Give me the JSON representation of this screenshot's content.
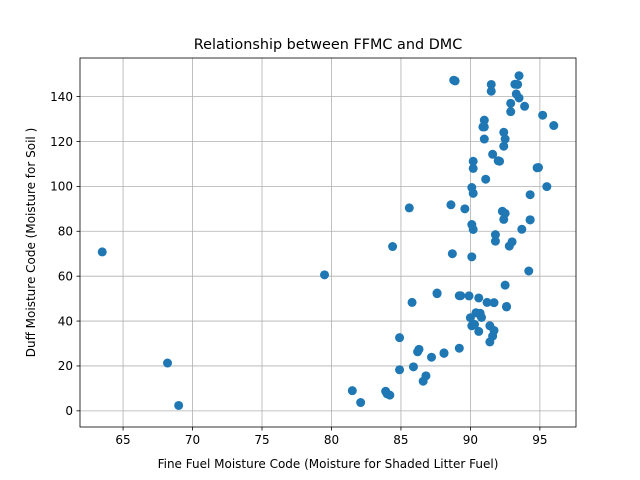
{
  "chart_data": {
    "type": "scatter",
    "title": "Relationship between FFMC and DMC",
    "xlabel": "Fine Fuel Moisture Code (Moisture for Shaded Litter Fuel)",
    "ylabel": "Duff Moisture Code (Moisture for Soil )",
    "xlim": [
      61.9,
      97.6
    ],
    "ylim": [
      -7.2,
      157.2
    ],
    "xticks": [
      65,
      70,
      75,
      80,
      85,
      90,
      95
    ],
    "yticks": [
      0,
      20,
      40,
      60,
      80,
      100,
      120,
      140
    ],
    "grid": true,
    "marker_color": "#1f77b4",
    "series": [
      {
        "points": [
          [
            63.5,
            70.8
          ],
          [
            68.2,
            21.3
          ],
          [
            69.0,
            2.4
          ],
          [
            79.5,
            60.6
          ],
          [
            81.5,
            9.0
          ],
          [
            82.1,
            3.7
          ],
          [
            83.9,
            8.7
          ],
          [
            84.0,
            7.6
          ],
          [
            84.2,
            7.0
          ],
          [
            84.4,
            73.2
          ],
          [
            84.9,
            18.3
          ],
          [
            84.9,
            32.6
          ],
          [
            85.6,
            90.4
          ],
          [
            85.8,
            48.3
          ],
          [
            85.9,
            19.6
          ],
          [
            86.2,
            26.3
          ],
          [
            86.3,
            27.4
          ],
          [
            86.6,
            13.2
          ],
          [
            86.8,
            15.6
          ],
          [
            87.2,
            23.9
          ],
          [
            87.6,
            52.2
          ],
          [
            87.6,
            52.5
          ],
          [
            88.1,
            25.8
          ],
          [
            88.1,
            25.6
          ],
          [
            88.6,
            91.8
          ],
          [
            88.7,
            70.0
          ],
          [
            88.8,
            147.3
          ],
          [
            88.9,
            147.0
          ],
          [
            89.2,
            27.9
          ],
          [
            89.2,
            51.3
          ],
          [
            89.3,
            51.3
          ],
          [
            89.6,
            90.0
          ],
          [
            89.9,
            51.2
          ],
          [
            90.0,
            41.5
          ],
          [
            90.1,
            37.9
          ],
          [
            90.1,
            83.0
          ],
          [
            90.1,
            68.6
          ],
          [
            90.1,
            99.5
          ],
          [
            90.2,
            111.2
          ],
          [
            90.2,
            108.0
          ],
          [
            90.2,
            96.9
          ],
          [
            90.2,
            80.8
          ],
          [
            90.3,
            38.5
          ],
          [
            90.4,
            43.7
          ],
          [
            90.6,
            50.3
          ],
          [
            90.6,
            35.4
          ],
          [
            90.7,
            43.5
          ],
          [
            90.7,
            42.7
          ],
          [
            90.8,
            41.6
          ],
          [
            90.9,
            126.5
          ],
          [
            91.0,
            129.5
          ],
          [
            91.0,
            126.5
          ],
          [
            91.0,
            121.1
          ],
          [
            91.1,
            103.2
          ],
          [
            91.2,
            48.3
          ],
          [
            91.4,
            37.9
          ],
          [
            91.4,
            30.7
          ],
          [
            91.5,
            145.4
          ],
          [
            91.5,
            142.4
          ],
          [
            91.6,
            114.3
          ],
          [
            91.6,
            33.3
          ],
          [
            91.7,
            48.2
          ],
          [
            91.7,
            35.8
          ],
          [
            91.8,
            78.5
          ],
          [
            91.8,
            75.6
          ],
          [
            92.0,
            111.4
          ],
          [
            92.1,
            111.2
          ],
          [
            92.3,
            88.9
          ],
          [
            92.4,
            124.1
          ],
          [
            92.4,
            117.9
          ],
          [
            92.4,
            85.3
          ],
          [
            92.5,
            88.0
          ],
          [
            92.5,
            121.1
          ],
          [
            92.5,
            56.0
          ],
          [
            92.6,
            46.5
          ],
          [
            92.6,
            46.3
          ],
          [
            92.8,
            73.4
          ],
          [
            92.9,
            133.3
          ],
          [
            92.9,
            137.0
          ],
          [
            93.0,
            75.3
          ],
          [
            93.2,
            145.5
          ],
          [
            93.3,
            141.2
          ],
          [
            93.4,
            145.4
          ],
          [
            93.5,
            149.3
          ],
          [
            93.5,
            139.4
          ],
          [
            93.7,
            80.9
          ],
          [
            93.9,
            135.7
          ],
          [
            94.2,
            62.3
          ],
          [
            94.3,
            96.3
          ],
          [
            94.3,
            85.1
          ],
          [
            94.3,
            85.1
          ],
          [
            94.8,
            108.3
          ],
          [
            94.9,
            108.4
          ],
          [
            95.2,
            131.7
          ],
          [
            95.5,
            99.9
          ],
          [
            96.0,
            127.1
          ]
        ]
      }
    ]
  }
}
